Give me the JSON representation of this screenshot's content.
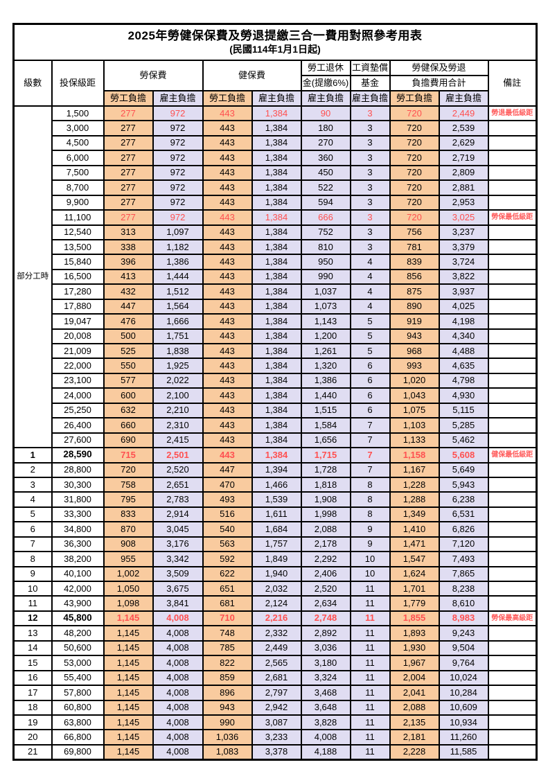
{
  "title": "2025年勞健保保費及勞退提繳三合一費用對照參考用表",
  "subtitle": "(民國114年1月1日起)",
  "colors": {
    "employee_col_bg": "#F9CB9F",
    "employer_col_bg": "#E0DDF2",
    "highlight_text": "#FF5050",
    "border": "#000000"
  },
  "header": {
    "level": "級數",
    "bracket": "投保級距",
    "labor_insurance": "勞保費",
    "health_insurance": "健保費",
    "pension_line1": "勞工退休",
    "pension_line2": "金(提繳6%)",
    "wage_fund_line1": "工資墊償",
    "wage_fund_line2": "基金",
    "total_line1": "勞健保及勞退",
    "total_line2": "負擔費用合計",
    "remark": "備註",
    "employee": "勞工負擔",
    "employer": "雇主負擔"
  },
  "part_time_label": "部分工時",
  "part_time_rowspan": 23,
  "rows": [
    {
      "level": "",
      "bracket": "1,500",
      "values": [
        "277",
        "972",
        "443",
        "1,384",
        "90",
        "3",
        "720",
        "2,449"
      ],
      "remark": "勞退最低級距",
      "red": true,
      "bold": false
    },
    {
      "level": "",
      "bracket": "3,000",
      "values": [
        "277",
        "972",
        "443",
        "1,384",
        "180",
        "3",
        "720",
        "2,539"
      ],
      "remark": "",
      "red": false,
      "bold": false
    },
    {
      "level": "",
      "bracket": "4,500",
      "values": [
        "277",
        "972",
        "443",
        "1,384",
        "270",
        "3",
        "720",
        "2,629"
      ],
      "remark": "",
      "red": false,
      "bold": false
    },
    {
      "level": "",
      "bracket": "6,000",
      "values": [
        "277",
        "972",
        "443",
        "1,384",
        "360",
        "3",
        "720",
        "2,719"
      ],
      "remark": "",
      "red": false,
      "bold": false
    },
    {
      "level": "",
      "bracket": "7,500",
      "values": [
        "277",
        "972",
        "443",
        "1,384",
        "450",
        "3",
        "720",
        "2,809"
      ],
      "remark": "",
      "red": false,
      "bold": false
    },
    {
      "level": "",
      "bracket": "8,700",
      "values": [
        "277",
        "972",
        "443",
        "1,384",
        "522",
        "3",
        "720",
        "2,881"
      ],
      "remark": "",
      "red": false,
      "bold": false
    },
    {
      "level": "",
      "bracket": "9,900",
      "values": [
        "277",
        "972",
        "443",
        "1,384",
        "594",
        "3",
        "720",
        "2,953"
      ],
      "remark": "",
      "red": false,
      "bold": false
    },
    {
      "level": "",
      "bracket": "11,100",
      "values": [
        "277",
        "972",
        "443",
        "1,384",
        "666",
        "3",
        "720",
        "3,025"
      ],
      "remark": "勞保最低級距",
      "red": true,
      "bold": false
    },
    {
      "level": "",
      "bracket": "12,540",
      "values": [
        "313",
        "1,097",
        "443",
        "1,384",
        "752",
        "3",
        "756",
        "3,237"
      ],
      "remark": "",
      "red": false,
      "bold": false
    },
    {
      "level": "",
      "bracket": "13,500",
      "values": [
        "338",
        "1,182",
        "443",
        "1,384",
        "810",
        "3",
        "781",
        "3,379"
      ],
      "remark": "",
      "red": false,
      "bold": false
    },
    {
      "level": "",
      "bracket": "15,840",
      "values": [
        "396",
        "1,386",
        "443",
        "1,384",
        "950",
        "4",
        "839",
        "3,724"
      ],
      "remark": "",
      "red": false,
      "bold": false
    },
    {
      "level": "",
      "bracket": "16,500",
      "values": [
        "413",
        "1,444",
        "443",
        "1,384",
        "990",
        "4",
        "856",
        "3,822"
      ],
      "remark": "",
      "red": false,
      "bold": false
    },
    {
      "level": "",
      "bracket": "17,280",
      "values": [
        "432",
        "1,512",
        "443",
        "1,384",
        "1,037",
        "4",
        "875",
        "3,937"
      ],
      "remark": "",
      "red": false,
      "bold": false
    },
    {
      "level": "",
      "bracket": "17,880",
      "values": [
        "447",
        "1,564",
        "443",
        "1,384",
        "1,073",
        "4",
        "890",
        "4,025"
      ],
      "remark": "",
      "red": false,
      "bold": false
    },
    {
      "level": "",
      "bracket": "19,047",
      "values": [
        "476",
        "1,666",
        "443",
        "1,384",
        "1,143",
        "5",
        "919",
        "4,198"
      ],
      "remark": "",
      "red": false,
      "bold": false
    },
    {
      "level": "",
      "bracket": "20,008",
      "values": [
        "500",
        "1,751",
        "443",
        "1,384",
        "1,200",
        "5",
        "943",
        "4,340"
      ],
      "remark": "",
      "red": false,
      "bold": false
    },
    {
      "level": "",
      "bracket": "21,009",
      "values": [
        "525",
        "1,838",
        "443",
        "1,384",
        "1,261",
        "5",
        "968",
        "4,488"
      ],
      "remark": "",
      "red": false,
      "bold": false
    },
    {
      "level": "",
      "bracket": "22,000",
      "values": [
        "550",
        "1,925",
        "443",
        "1,384",
        "1,320",
        "6",
        "993",
        "4,635"
      ],
      "remark": "",
      "red": false,
      "bold": false
    },
    {
      "level": "",
      "bracket": "23,100",
      "values": [
        "577",
        "2,022",
        "443",
        "1,384",
        "1,386",
        "6",
        "1,020",
        "4,798"
      ],
      "remark": "",
      "red": false,
      "bold": false
    },
    {
      "level": "",
      "bracket": "24,000",
      "values": [
        "600",
        "2,100",
        "443",
        "1,384",
        "1,440",
        "6",
        "1,043",
        "4,930"
      ],
      "remark": "",
      "red": false,
      "bold": false
    },
    {
      "level": "",
      "bracket": "25,250",
      "values": [
        "632",
        "2,210",
        "443",
        "1,384",
        "1,515",
        "6",
        "1,075",
        "5,115"
      ],
      "remark": "",
      "red": false,
      "bold": false
    },
    {
      "level": "",
      "bracket": "26,400",
      "values": [
        "660",
        "2,310",
        "443",
        "1,384",
        "1,584",
        "7",
        "1,103",
        "5,285"
      ],
      "remark": "",
      "red": false,
      "bold": false
    },
    {
      "level": "",
      "bracket": "27,600",
      "values": [
        "690",
        "2,415",
        "443",
        "1,384",
        "1,656",
        "7",
        "1,133",
        "5,462"
      ],
      "remark": "",
      "red": false,
      "bold": false
    },
    {
      "level": "1",
      "bracket": "28,590",
      "values": [
        "715",
        "2,501",
        "443",
        "1,384",
        "1,715",
        "7",
        "1,158",
        "5,608"
      ],
      "remark": "健保最低級距",
      "red": true,
      "bold": true
    },
    {
      "level": "2",
      "bracket": "28,800",
      "values": [
        "720",
        "2,520",
        "447",
        "1,394",
        "1,728",
        "7",
        "1,167",
        "5,649"
      ],
      "remark": "",
      "red": false,
      "bold": false
    },
    {
      "level": "3",
      "bracket": "30,300",
      "values": [
        "758",
        "2,651",
        "470",
        "1,466",
        "1,818",
        "8",
        "1,228",
        "5,943"
      ],
      "remark": "",
      "red": false,
      "bold": false
    },
    {
      "level": "4",
      "bracket": "31,800",
      "values": [
        "795",
        "2,783",
        "493",
        "1,539",
        "1,908",
        "8",
        "1,288",
        "6,238"
      ],
      "remark": "",
      "red": false,
      "bold": false
    },
    {
      "level": "5",
      "bracket": "33,300",
      "values": [
        "833",
        "2,914",
        "516",
        "1,611",
        "1,998",
        "8",
        "1,349",
        "6,531"
      ],
      "remark": "",
      "red": false,
      "bold": false
    },
    {
      "level": "6",
      "bracket": "34,800",
      "values": [
        "870",
        "3,045",
        "540",
        "1,684",
        "2,088",
        "9",
        "1,410",
        "6,826"
      ],
      "remark": "",
      "red": false,
      "bold": false
    },
    {
      "level": "7",
      "bracket": "36,300",
      "values": [
        "908",
        "3,176",
        "563",
        "1,757",
        "2,178",
        "9",
        "1,471",
        "7,120"
      ],
      "remark": "",
      "red": false,
      "bold": false
    },
    {
      "level": "8",
      "bracket": "38,200",
      "values": [
        "955",
        "3,342",
        "592",
        "1,849",
        "2,292",
        "10",
        "1,547",
        "7,493"
      ],
      "remark": "",
      "red": false,
      "bold": false
    },
    {
      "level": "9",
      "bracket": "40,100",
      "values": [
        "1,002",
        "3,509",
        "622",
        "1,940",
        "2,406",
        "10",
        "1,624",
        "7,865"
      ],
      "remark": "",
      "red": false,
      "bold": false
    },
    {
      "level": "10",
      "bracket": "42,000",
      "values": [
        "1,050",
        "3,675",
        "651",
        "2,032",
        "2,520",
        "11",
        "1,701",
        "8,238"
      ],
      "remark": "",
      "red": false,
      "bold": false
    },
    {
      "level": "11",
      "bracket": "43,900",
      "values": [
        "1,098",
        "3,841",
        "681",
        "2,124",
        "2,634",
        "11",
        "1,779",
        "8,610"
      ],
      "remark": "",
      "red": false,
      "bold": false
    },
    {
      "level": "12",
      "bracket": "45,800",
      "values": [
        "1,145",
        "4,008",
        "710",
        "2,216",
        "2,748",
        "11",
        "1,855",
        "8,983"
      ],
      "remark": "勞保最高級距",
      "red": true,
      "bold": true
    },
    {
      "level": "13",
      "bracket": "48,200",
      "values": [
        "1,145",
        "4,008",
        "748",
        "2,332",
        "2,892",
        "11",
        "1,893",
        "9,243"
      ],
      "remark": "",
      "red": false,
      "bold": false
    },
    {
      "level": "14",
      "bracket": "50,600",
      "values": [
        "1,145",
        "4,008",
        "785",
        "2,449",
        "3,036",
        "11",
        "1,930",
        "9,504"
      ],
      "remark": "",
      "red": false,
      "bold": false
    },
    {
      "level": "15",
      "bracket": "53,000",
      "values": [
        "1,145",
        "4,008",
        "822",
        "2,565",
        "3,180",
        "11",
        "1,967",
        "9,764"
      ],
      "remark": "",
      "red": false,
      "bold": false
    },
    {
      "level": "16",
      "bracket": "55,400",
      "values": [
        "1,145",
        "4,008",
        "859",
        "2,681",
        "3,324",
        "11",
        "2,004",
        "10,024"
      ],
      "remark": "",
      "red": false,
      "bold": false
    },
    {
      "level": "17",
      "bracket": "57,800",
      "values": [
        "1,145",
        "4,008",
        "896",
        "2,797",
        "3,468",
        "11",
        "2,041",
        "10,284"
      ],
      "remark": "",
      "red": false,
      "bold": false
    },
    {
      "level": "18",
      "bracket": "60,800",
      "values": [
        "1,145",
        "4,008",
        "943",
        "2,942",
        "3,648",
        "11",
        "2,088",
        "10,609"
      ],
      "remark": "",
      "red": false,
      "bold": false
    },
    {
      "level": "19",
      "bracket": "63,800",
      "values": [
        "1,145",
        "4,008",
        "990",
        "3,087",
        "3,828",
        "11",
        "2,135",
        "10,934"
      ],
      "remark": "",
      "red": false,
      "bold": false
    },
    {
      "level": "20",
      "bracket": "66,800",
      "values": [
        "1,145",
        "4,008",
        "1,036",
        "3,233",
        "4,008",
        "11",
        "2,181",
        "11,260"
      ],
      "remark": "",
      "red": false,
      "bold": false
    },
    {
      "level": "21",
      "bracket": "69,800",
      "values": [
        "1,145",
        "4,008",
        "1,083",
        "3,378",
        "4,188",
        "11",
        "2,228",
        "11,585"
      ],
      "remark": "",
      "red": false,
      "bold": false
    }
  ]
}
